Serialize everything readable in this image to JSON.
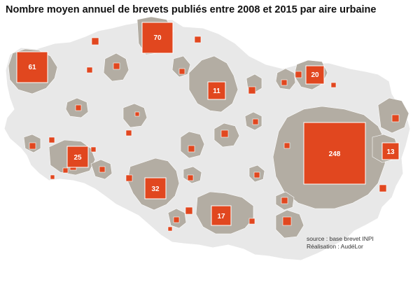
{
  "title": "Nombre moyen annuel de brevets publiés entre 2008 et 2015 par aire urbaine",
  "credits": {
    "source": "source : base brevet INPI",
    "realisation": "Réalisation : AudéLor"
  },
  "colors": {
    "region": "#e8e8e8",
    "region_border": "#ffffff",
    "urban_area": "#b3ada3",
    "patent_square": "#e1471f",
    "square_border": "#ffffff",
    "label": "#ffffff"
  },
  "labeled_areas": [
    {
      "value": "70"
    },
    {
      "value": "61"
    },
    {
      "value": "20"
    },
    {
      "value": "11"
    },
    {
      "value": "248"
    },
    {
      "value": "13"
    },
    {
      "value": "25"
    },
    {
      "value": "32"
    },
    {
      "value": "17"
    }
  ]
}
